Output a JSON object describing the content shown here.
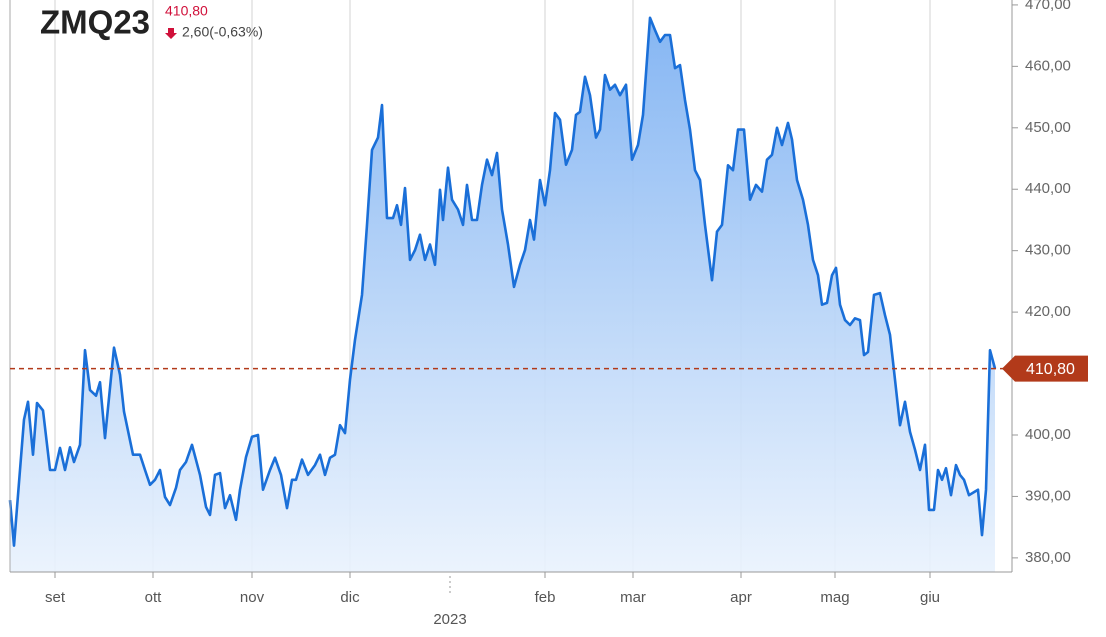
{
  "header": {
    "symbol": "ZMQ23",
    "last": "410,80",
    "change": "2,60(-0,63%)"
  },
  "chart_data": {
    "type": "area",
    "color": "#1a6fd8",
    "x": [
      0,
      0.8,
      2.8,
      3.6,
      4.6,
      5.4,
      6.6,
      8,
      9,
      10,
      11,
      12,
      12.8,
      14,
      15,
      16,
      17.2,
      18,
      19,
      20.8,
      22,
      22.8,
      24.6,
      26,
      27,
      28,
      29,
      30,
      31,
      32,
      33.2,
      34,
      35.2,
      36.4,
      38,
      39.2,
      40,
      41,
      42,
      43,
      44,
      45.2,
      46,
      47.2,
      48.4,
      49.6,
      50.6,
      52,
      53,
      54.2,
      55.4,
      56.4,
      57.2,
      58.4,
      59.6,
      61,
      62,
      63,
      64,
      65,
      66,
      67,
      68,
      69,
      70.4,
      71.4,
      72.4,
      73.6,
      74.4,
      75.4,
      76.6,
      77.4,
      78.2,
      79,
      80,
      81,
      82,
      83,
      84,
      85,
      86,
      86.6,
      87.6,
      88.4,
      89.6,
      90.6,
      91.4,
      92.4,
      93.4,
      94.4,
      95.4,
      96.4,
      97.4,
      98.4,
      99.6,
      100.8,
      102,
      103,
      104,
      104.8,
      106,
      107,
      108,
      109,
      110,
      111.2,
      112.4,
      113.2,
      114,
      115,
      116,
      117.2,
      118,
      119,
      120,
      121,
      122,
      123.2,
      124.4,
      125.6,
      126.6,
      128,
      129,
      130,
      131,
      132,
      133,
      134,
      135,
      136,
      137,
      138,
      139,
      140.4,
      141.4,
      142.4,
      143.6,
      144.6,
      145.6,
      146.8,
      148,
      149.2,
      150.4,
      151.4,
      152.4,
      153.4,
      154.4,
      155.6,
      156.4,
      157.4,
      158.6,
      159.6,
      160.6,
      161.6,
      162.4,
      163.4,
      164.4,
      165.2,
      166,
      167,
      168,
      169,
      170,
      170.8,
      171.6,
      172.8,
      174,
      175,
      176,
      177,
      178,
      179,
      180,
      181,
      182,
      183,
      183.8,
      184.8,
      185.6,
      186.4,
      187.2,
      188.2,
      189.2,
      190,
      190.8,
      191.8,
      192.8,
      193.6,
      194.4,
      195.2,
      196,
      197
    ],
    "values": [
      389.4,
      382,
      402.5,
      405.4,
      396.8,
      405.2,
      404,
      394.3,
      394.3,
      397.9,
      394.3,
      398,
      395.6,
      398.4,
      413.8,
      407.3,
      406.4,
      408.6,
      399.5,
      414.2,
      409.8,
      403.8,
      396.8,
      396.8,
      394.3,
      391.9,
      392.7,
      394.3,
      389.9,
      388.6,
      391.4,
      394.3,
      395.6,
      398.4,
      393.5,
      388.3,
      387,
      393.5,
      393.8,
      388.1,
      390.2,
      386.2,
      391.1,
      396.4,
      399.7,
      400,
      391.1,
      394.3,
      396.3,
      393.5,
      388.1,
      392.7,
      392.7,
      396,
      393.5,
      395.1,
      396.8,
      393.5,
      396.3,
      396.8,
      401.6,
      400.3,
      409,
      415.5,
      422.8,
      434.2,
      446.4,
      448.4,
      453.7,
      435.3,
      435.3,
      437.4,
      434.2,
      440.2,
      428.5,
      430.1,
      432.6,
      428.5,
      431,
      427.7,
      439.9,
      435,
      443.5,
      438.3,
      436.7,
      434.2,
      440.7,
      435,
      435,
      440.7,
      444.8,
      442.3,
      445.9,
      436.7,
      431,
      424.1,
      427.7,
      430.1,
      435,
      431.8,
      441.5,
      437.4,
      443.1,
      452.4,
      451.3,
      444,
      446.4,
      452.1,
      452.6,
      458.3,
      455.3,
      448.4,
      449.7,
      458.6,
      456.2,
      457,
      455.3,
      457,
      444.8,
      447.2,
      452.1,
      467.9,
      465.9,
      464,
      465.1,
      465.1,
      459.7,
      460.2,
      454.5,
      449.7,
      443.1,
      441.5,
      434.2,
      425.2,
      433.1,
      434.2,
      443.9,
      443.1,
      449.7,
      449.7,
      438.3,
      440.7,
      439.6,
      444.8,
      445.6,
      450,
      447.2,
      450.8,
      448.1,
      441.5,
      438.3,
      434.2,
      428.5,
      426,
      421.2,
      421.5,
      426,
      427.2,
      421.2,
      418.7,
      417.9,
      419,
      418.7,
      413,
      413.5,
      422.8,
      423.1,
      419.5,
      416.3,
      409,
      401.6,
      405.4,
      400.5,
      397.6,
      394.3,
      398.4,
      387.8,
      387.8,
      394.3,
      392.7,
      394.6,
      390.2,
      395.1,
      393.5,
      392.7,
      390.2,
      390.7,
      391.1,
      383.7,
      391.1,
      413.8,
      410.8
    ],
    "xlim": [
      0,
      200.4
    ],
    "xticks": [
      {
        "value": 9,
        "label": "set"
      },
      {
        "value": 28.6,
        "label": "ott"
      },
      {
        "value": 48.4,
        "label": "nov"
      },
      {
        "value": 68,
        "label": "dic"
      },
      {
        "value": 107,
        "label": "feb"
      },
      {
        "value": 124.6,
        "label": "mar"
      },
      {
        "value": 146.2,
        "label": "apr"
      },
      {
        "value": 165,
        "label": "mag"
      },
      {
        "value": 184,
        "label": "giu"
      }
    ],
    "year_marker": {
      "value": 88,
      "label": "2023"
    },
    "ylim": [
      377.7,
      470.8
    ],
    "yticks": [
      {
        "value": 380,
        "label": "380,00"
      },
      {
        "value": 390,
        "label": "390,00"
      },
      {
        "value": 400,
        "label": "400,00"
      },
      {
        "value": 410,
        "label": "410,00"
      },
      {
        "value": 420,
        "label": "420,00"
      },
      {
        "value": 430,
        "label": "430,00"
      },
      {
        "value": 440,
        "label": "440,00"
      },
      {
        "value": 450,
        "label": "450,00"
      },
      {
        "value": 460,
        "label": "460,00"
      },
      {
        "value": 470,
        "label": "470,00"
      }
    ],
    "reference_line": {
      "value": 410.8,
      "label": "410,80",
      "color": "#b23a1a"
    },
    "grid": true
  }
}
